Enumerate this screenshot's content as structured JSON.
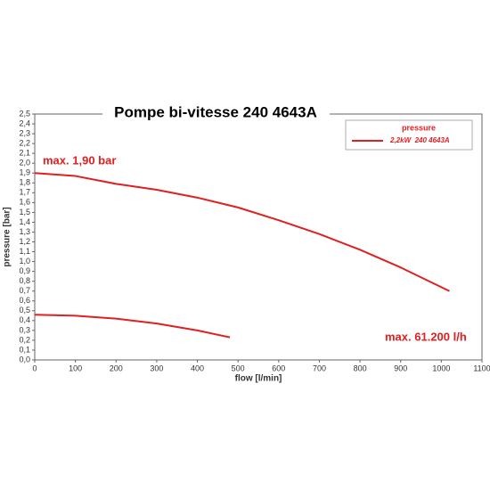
{
  "chart_data": {
    "type": "line",
    "title": "Pompe bi-vitesse 240 4643A",
    "x_label": "flow [l/min]",
    "y_label": "pressure [bar]",
    "legend_title": "pressure",
    "annotations": [
      "max. 1,90 bar",
      "max. 61.200 l/h"
    ],
    "series": [
      {
        "name": "2,2kW  240 4643A",
        "color": "#e02020",
        "x": [
          0,
          100,
          200,
          300,
          400,
          500,
          600,
          700,
          800,
          900,
          1020
        ],
        "values": [
          1.9,
          1.87,
          1.79,
          1.73,
          1.65,
          1.55,
          1.42,
          1.28,
          1.12,
          0.94,
          0.7
        ]
      },
      {
        "color": "#e02020",
        "x": [
          0,
          100,
          200,
          300,
          400,
          480
        ],
        "values": [
          0.46,
          0.45,
          0.42,
          0.37,
          0.3,
          0.23
        ]
      }
    ],
    "xlim": [
      0,
      1100
    ],
    "xticks": [
      0,
      100,
      200,
      300,
      400,
      500,
      600,
      700,
      800,
      900,
      1000,
      1100
    ],
    "ylim": [
      0,
      2.5
    ],
    "yticks": [
      {
        "value": 0,
        "label": "0,0"
      },
      {
        "value": 0.1,
        "label": "0,1"
      },
      {
        "value": 0.2,
        "label": "0,2"
      },
      {
        "value": 0.3,
        "label": "0,3"
      },
      {
        "value": 0.4,
        "label": "0,4"
      },
      {
        "value": 0.5,
        "label": "0,5"
      },
      {
        "value": 0.6,
        "label": "0,6"
      },
      {
        "value": 0.7,
        "label": "0,7"
      },
      {
        "value": 0.8,
        "label": "0,8"
      },
      {
        "value": 0.9,
        "label": "0,9"
      },
      {
        "value": 1.0,
        "label": "1,0"
      },
      {
        "value": 1.1,
        "label": "1,1"
      },
      {
        "value": 1.2,
        "label": "1,2"
      },
      {
        "value": 1.3,
        "label": "1,3"
      },
      {
        "value": 1.4,
        "label": "1,4"
      },
      {
        "value": 1.5,
        "label": "1,5"
      },
      {
        "value": 1.6,
        "label": "1,6"
      },
      {
        "value": 1.7,
        "label": "1,7"
      },
      {
        "value": 1.8,
        "label": "1,8"
      },
      {
        "value": 1.9,
        "label": "1,9"
      },
      {
        "value": 2.0,
        "label": "2,0"
      },
      {
        "value": 2.1,
        "label": "2,1"
      },
      {
        "value": 2.2,
        "label": "2,2"
      },
      {
        "value": 2.3,
        "label": "2,3"
      },
      {
        "value": 2.4,
        "label": "2,4"
      },
      {
        "value": 2.5,
        "label": "2,5"
      }
    ],
    "grid": false
  }
}
